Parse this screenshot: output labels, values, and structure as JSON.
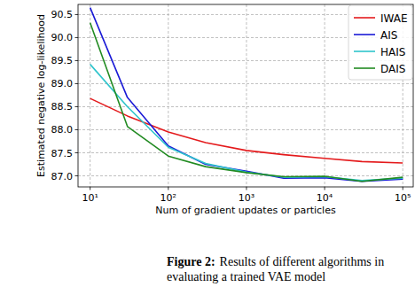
{
  "chart_data": {
    "type": "line",
    "x_label": "Num of gradient updates or particles",
    "y_label": "Estimated negative log-likelihood",
    "x": [
      10,
      30,
      100,
      300,
      1000,
      3000,
      10000,
      30000,
      100000
    ],
    "series": [
      {
        "name": "IWAE",
        "color": "#e41a1c",
        "values": [
          88.68,
          88.3,
          87.95,
          87.72,
          87.55,
          87.46,
          87.38,
          87.31,
          87.28
        ]
      },
      {
        "name": "AIS",
        "color": "#1a1ad6",
        "values": [
          90.65,
          88.7,
          87.65,
          87.25,
          87.1,
          86.95,
          86.96,
          86.88,
          86.93
        ]
      },
      {
        "name": "HAIS",
        "color": "#2ec4cc",
        "values": [
          89.42,
          88.5,
          87.62,
          87.27,
          87.08,
          86.97,
          86.98,
          86.9,
          86.95
        ]
      },
      {
        "name": "DAIS",
        "color": "#228b22",
        "values": [
          90.32,
          88.07,
          87.43,
          87.2,
          87.07,
          86.98,
          86.99,
          86.88,
          86.97
        ]
      }
    ],
    "log": "x",
    "xlim": [
      7,
      136000
    ],
    "ylim": [
      86.76,
      90.72
    ],
    "xticks": [
      {
        "value": 10,
        "label": "10¹"
      },
      {
        "value": 100,
        "label": "10²"
      },
      {
        "value": 1000,
        "label": "10³"
      },
      {
        "value": 10000,
        "label": "10⁴"
      },
      {
        "value": 100000,
        "label": "10⁵"
      }
    ],
    "yticks": [
      {
        "value": 87,
        "label": "87.0"
      },
      87.5,
      {
        "value": 88,
        "label": "88.0"
      },
      88.5,
      {
        "value": 89,
        "label": "89.0"
      },
      89.5,
      {
        "value": 90,
        "label": "90.0"
      },
      90.5
    ],
    "grid": true,
    "legend": "upper-right"
  },
  "caption": {
    "label": "Figure 2:",
    "text": "Results of different algorithms in evaluating a trained VAE model"
  }
}
